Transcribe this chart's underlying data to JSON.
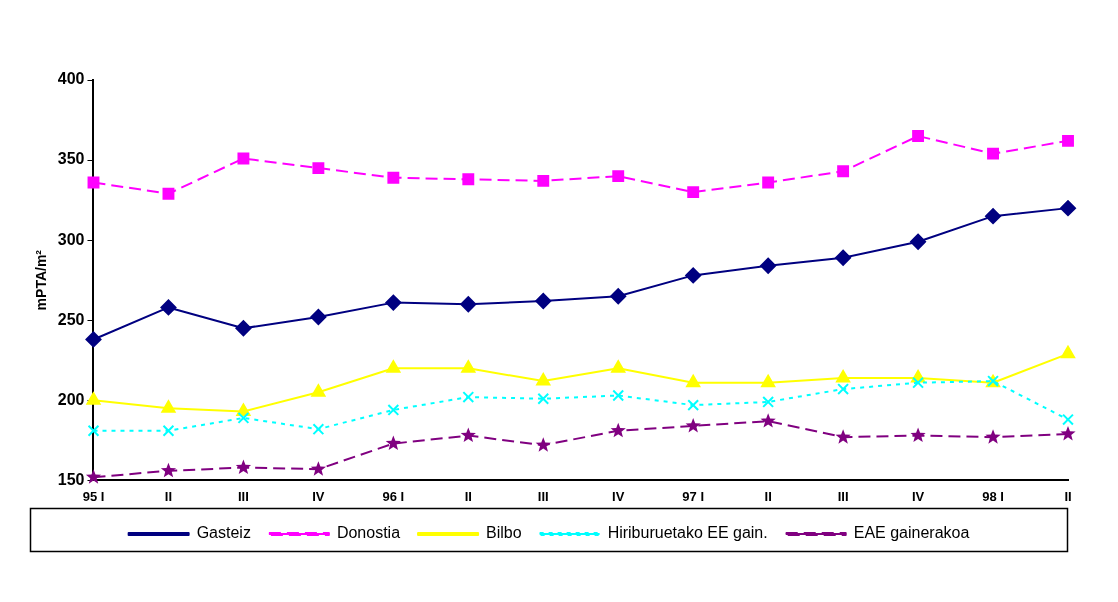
{
  "chart_data": {
    "type": "line",
    "ylabel": "mPTA/m²",
    "categories": [
      "95 I",
      "II",
      "III",
      "IV",
      "96 I",
      "II",
      "III",
      "IV",
      "97 I",
      "II",
      "III",
      "IV",
      "98 I",
      "II"
    ],
    "ylim": [
      150,
      400
    ],
    "yticks": [
      150,
      200,
      250,
      300,
      350,
      400
    ],
    "grid": false,
    "legend": "bottom",
    "series": [
      {
        "name": "Gasteiz",
        "color": "#000080",
        "marker": "diamond",
        "line_style": "solid",
        "values": [
          238,
          258,
          245,
          252,
          261,
          260,
          262,
          265,
          278,
          284,
          289,
          299,
          315,
          320
        ]
      },
      {
        "name": "Donostia",
        "color": "#ff00ff",
        "marker": "square",
        "line_style": "dashed",
        "values": [
          336,
          329,
          351,
          345,
          339,
          338,
          337,
          340,
          330,
          336,
          343,
          365,
          354,
          362
        ]
      },
      {
        "name": "Bilbo",
        "color": "#ffff00",
        "marker": "triangle",
        "line_style": "solid",
        "values": [
          200,
          195,
          193,
          205,
          220,
          220,
          212,
          220,
          211,
          211,
          214,
          214,
          211,
          229
        ]
      },
      {
        "name": "Hiriburuetako EE gain.",
        "color": "#00ffff",
        "marker": "cross",
        "line_style": "dotted",
        "values": [
          181,
          181,
          189,
          182,
          194,
          202,
          201,
          203,
          197,
          199,
          207,
          211,
          212,
          188
        ]
      },
      {
        "name": "EAE gainerakoa",
        "color": "#800080",
        "marker": "star",
        "line_style": "dashed",
        "values": [
          152,
          156,
          158,
          157,
          173,
          178,
          172,
          181,
          184,
          187,
          177,
          178,
          177,
          179
        ]
      }
    ]
  }
}
